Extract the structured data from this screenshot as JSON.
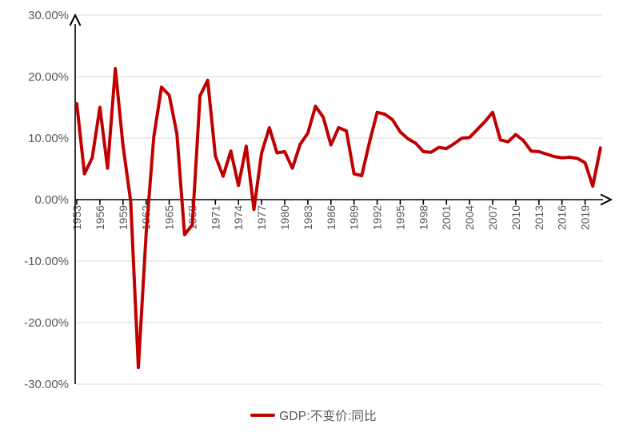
{
  "chart_data": {
    "type": "line",
    "title": "",
    "xlabel": "",
    "ylabel": "",
    "grid": true,
    "legend_position": "bottom-center",
    "xlim": [
      1953,
      2021
    ],
    "ylim": [
      -30,
      30
    ],
    "y_ticks": [
      {
        "value": 30,
        "label": "30.00%"
      },
      {
        "value": 20,
        "label": "20.00%"
      },
      {
        "value": 10,
        "label": "10.00%"
      },
      {
        "value": 0,
        "label": "0.00%"
      },
      {
        "value": -10,
        "label": "-10.00%"
      },
      {
        "value": -20,
        "label": "-20.00%"
      },
      {
        "value": -30,
        "label": "-30.00%"
      }
    ],
    "x_tick_labels": [
      "1953",
      "1956",
      "1959",
      "1962",
      "1965",
      "1968",
      "1971",
      "1974",
      "1977",
      "1980",
      "1983",
      "1986",
      "1989",
      "1992",
      "1995",
      "1998",
      "2001",
      "2004",
      "2007",
      "2010",
      "2013",
      "2016",
      "2019"
    ],
    "series": [
      {
        "name": "GDP:不变价:同比",
        "color": "#C00000",
        "x": [
          1953,
          1954,
          1955,
          1956,
          1957,
          1958,
          1959,
          1960,
          1961,
          1962,
          1963,
          1964,
          1965,
          1966,
          1967,
          1968,
          1969,
          1970,
          1971,
          1972,
          1973,
          1974,
          1975,
          1976,
          1977,
          1978,
          1979,
          1980,
          1981,
          1982,
          1983,
          1984,
          1985,
          1986,
          1987,
          1988,
          1989,
          1990,
          1991,
          1992,
          1993,
          1994,
          1995,
          1996,
          1997,
          1998,
          1999,
          2000,
          2001,
          2002,
          2003,
          2004,
          2005,
          2006,
          2007,
          2008,
          2009,
          2010,
          2011,
          2012,
          2013,
          2014,
          2015,
          2016,
          2017,
          2018,
          2019,
          2020,
          2021
        ],
        "values": [
          15.6,
          4.2,
          6.8,
          15.0,
          5.1,
          21.3,
          8.8,
          -0.3,
          -27.3,
          -5.6,
          10.2,
          18.3,
          17.0,
          10.7,
          -5.7,
          -4.1,
          16.9,
          19.4,
          7.1,
          3.8,
          7.9,
          2.3,
          8.7,
          -1.6,
          7.6,
          11.7,
          7.6,
          7.8,
          5.1,
          9.0,
          10.8,
          15.2,
          13.4,
          8.9,
          11.7,
          11.2,
          4.2,
          3.9,
          9.3,
          14.2,
          13.9,
          13.0,
          11.0,
          9.9,
          9.2,
          7.8,
          7.7,
          8.5,
          8.3,
          9.1,
          10.0,
          10.1,
          11.4,
          12.7,
          14.2,
          9.7,
          9.4,
          10.6,
          9.6,
          7.9,
          7.8,
          7.4,
          7.0,
          6.8,
          6.9,
          6.7,
          6.0,
          2.2,
          8.4
        ]
      }
    ]
  },
  "colors": {
    "series": "#C00000",
    "grid": "#DADADA",
    "axis": "#000000",
    "tick_label": "#595959",
    "background": "#FFFFFF"
  }
}
